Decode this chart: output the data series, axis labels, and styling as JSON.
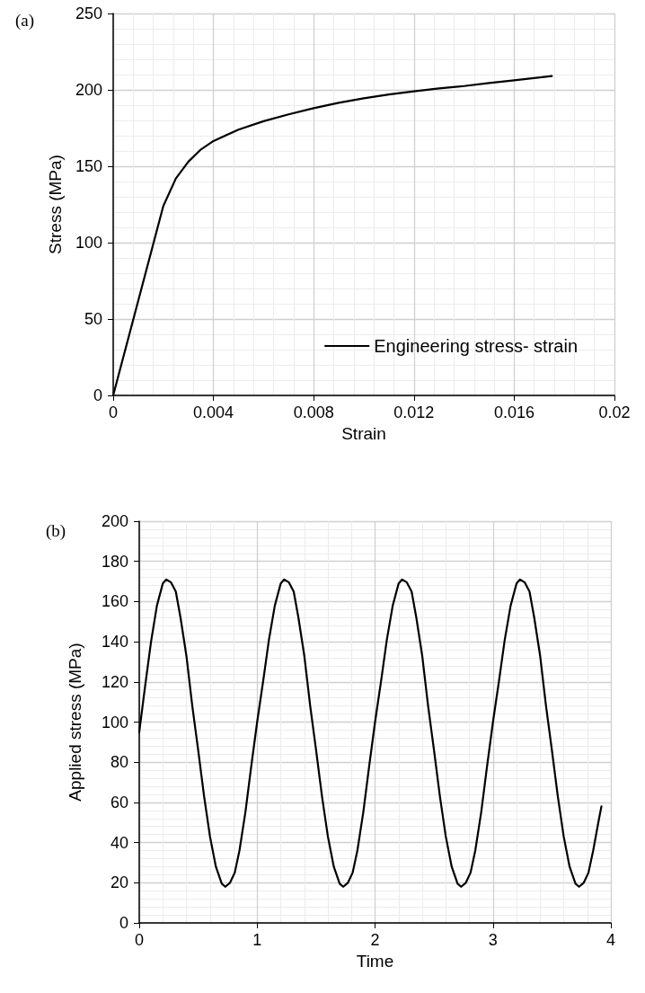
{
  "chart_data": [
    {
      "type": "line",
      "title": "(a)",
      "xlabel": "Strain",
      "ylabel": "Stress (MPa)",
      "x": [
        0,
        0.002,
        0.0025,
        0.003,
        0.0035,
        0.004,
        0.005,
        0.006,
        0.007,
        0.008,
        0.009,
        0.01,
        0.011,
        0.012,
        0.013,
        0.014,
        0.015,
        0.016,
        0.0175
      ],
      "series": [
        {
          "name": "Engineering stress- strain",
          "color": "#000000",
          "values": [
            0,
            124,
            142,
            153,
            161,
            166.5,
            174,
            179.5,
            184,
            188,
            191.5,
            194.5,
            197,
            199,
            201,
            202.5,
            204.5,
            206.3,
            209
          ]
        }
      ],
      "xlim": [
        0,
        0.02
      ],
      "xticks": [
        0,
        0.004,
        0.008,
        0.012,
        0.016,
        0.02
      ],
      "ylim": [
        0,
        250
      ],
      "yticks": [
        0,
        50,
        100,
        150,
        200,
        250
      ],
      "grid": true,
      "legend": "bottom right",
      "marker": "none",
      "line_style": "solid"
    },
    {
      "type": "line",
      "title": "(b)",
      "xlabel": "Time",
      "ylabel": "Applied stress (MPa)",
      "x": [
        0,
        0.05,
        0.1,
        0.15,
        0.2,
        0.23,
        0.27,
        0.31,
        0.35,
        0.4,
        0.45,
        0.5,
        0.55,
        0.6,
        0.65,
        0.7,
        0.73,
        0.77,
        0.81,
        0.85,
        0.9,
        0.95,
        1,
        1.05,
        1.1,
        1.15,
        1.2,
        1.23,
        1.27,
        1.31,
        1.35,
        1.4,
        1.45,
        1.5,
        1.55,
        1.6,
        1.65,
        1.7,
        1.73,
        1.77,
        1.81,
        1.85,
        1.9,
        1.95,
        2,
        2.05,
        2.1,
        2.15,
        2.2,
        2.23,
        2.27,
        2.31,
        2.35,
        2.4,
        2.45,
        2.5,
        2.55,
        2.6,
        2.65,
        2.7,
        2.73,
        2.77,
        2.81,
        2.85,
        2.9,
        2.95,
        3,
        3.05,
        3.1,
        3.15,
        3.2,
        3.23,
        3.27,
        3.31,
        3.35,
        3.4,
        3.45,
        3.5,
        3.55,
        3.6,
        3.65,
        3.7,
        3.73,
        3.77,
        3.81,
        3.85,
        3.9,
        3.92
      ],
      "series": [
        {
          "color": "#000000",
          "values": [
            95,
            118,
            140,
            158,
            169,
            171,
            169.5,
            165,
            152,
            133,
            108,
            86,
            63,
            43,
            28,
            19.5,
            18,
            20,
            25,
            36,
            55,
            78,
            100,
            120,
            141,
            158,
            169,
            171,
            169.5,
            165,
            152,
            133,
            108,
            86,
            63,
            43,
            28,
            19.5,
            18,
            20,
            25,
            36,
            55,
            78,
            100,
            120,
            141,
            158,
            169,
            171,
            169.5,
            165,
            152,
            133,
            108,
            86,
            63,
            43,
            28,
            19.5,
            18,
            20,
            25,
            36,
            55,
            78,
            100,
            120,
            141,
            158,
            169,
            171,
            169.5,
            165,
            152,
            133,
            108,
            86,
            63,
            43,
            28,
            19.5,
            18,
            20,
            25,
            36,
            52,
            58
          ]
        }
      ],
      "xlim": [
        0,
        4
      ],
      "xticks": [
        0,
        1,
        2,
        3,
        4
      ],
      "ylim": [
        0,
        200
      ],
      "yticks": [
        0,
        20,
        40,
        60,
        80,
        100,
        120,
        140,
        160,
        180,
        200
      ],
      "grid": true,
      "marker": "none",
      "line_style": "solid"
    }
  ]
}
